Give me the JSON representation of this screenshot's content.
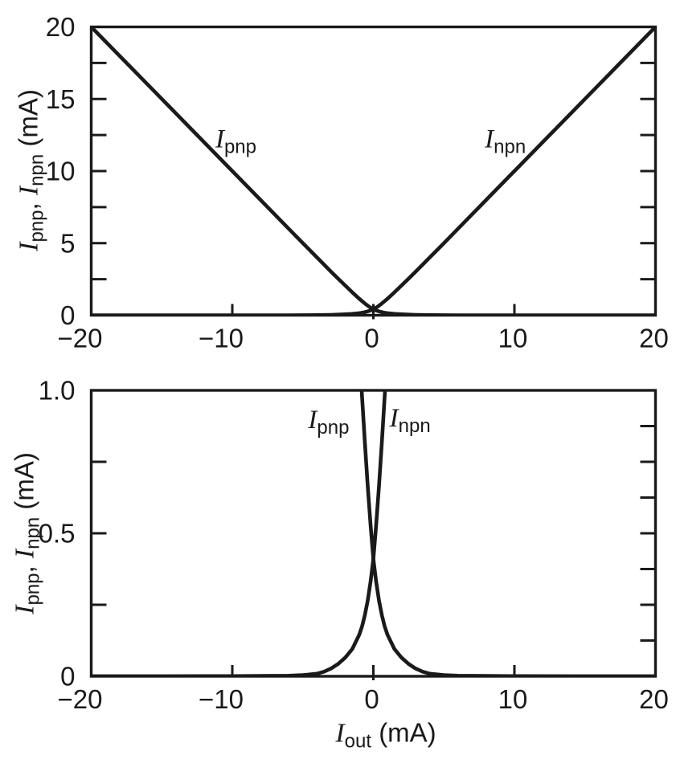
{
  "figure": {
    "background": "#ffffff",
    "ink": "#1a1a1a",
    "y_axis_label": {
      "i1": "I",
      "s1": "pnp",
      "sep": ", ",
      "i2": "I",
      "s2": "npn",
      "unit": " (mA)"
    },
    "x_axis_label": {
      "i": "I",
      "s": "out",
      "unit": " (mA)"
    }
  },
  "chart_data": {
    "type": "line",
    "title": "",
    "xlabel": "Iout (mA)",
    "ylabel": "Ipnp, Inpn (mA)",
    "grid": false,
    "legend": "inline curve annotations",
    "x": [
      -20,
      -15,
      -10,
      -8,
      -6,
      -5,
      -4,
      -3.5,
      -3,
      -2.5,
      -2,
      -1.5,
      -1,
      -0.8,
      -0.6,
      -0.4,
      -0.2,
      0,
      0.2,
      0.4,
      0.6,
      0.8,
      1,
      1.5,
      2,
      2.5,
      3,
      3.5,
      4,
      5,
      6,
      8,
      10,
      15,
      20
    ],
    "series": [
      {
        "name": "Ipnp",
        "label_main": "I",
        "label_sub": "pnp",
        "values": [
          20.0002,
          15.0003,
          10.0005,
          8.001,
          6.002,
          5.004,
          4.009,
          3.516,
          3.027,
          2.543,
          2.065,
          1.595,
          1.145,
          0.975,
          0.815,
          0.665,
          0.53,
          0.41,
          0.33,
          0.265,
          0.215,
          0.175,
          0.145,
          0.095,
          0.065,
          0.043,
          0.027,
          0.016,
          0.009,
          0.004,
          0.002,
          0.001,
          0.0005,
          0.0003,
          0.0002
        ]
      },
      {
        "name": "Inpn",
        "label_main": "I",
        "label_sub": "npn",
        "values": [
          0.0002,
          0.0003,
          0.0005,
          0.001,
          0.002,
          0.004,
          0.009,
          0.016,
          0.027,
          0.043,
          0.065,
          0.095,
          0.145,
          0.175,
          0.215,
          0.265,
          0.33,
          0.41,
          0.53,
          0.665,
          0.815,
          0.975,
          1.145,
          1.595,
          2.065,
          2.543,
          3.027,
          3.516,
          4.009,
          5.004,
          6.002,
          8.001,
          10.0005,
          15.0003,
          20.0002
        ]
      }
    ],
    "quiescent_crossing_mA": 0.41,
    "panels": [
      {
        "id": "top",
        "xlim": [
          -20,
          20
        ],
        "ylim": [
          0,
          20
        ],
        "xticks": [
          -20,
          -10,
          0,
          10,
          20
        ],
        "xtick_labels": [
          "−20",
          "−10",
          "0",
          "10",
          "20"
        ],
        "ytick_values": [
          0,
          5,
          10,
          15,
          20
        ],
        "ytick_labels": [
          "0",
          "5",
          "10",
          "15",
          "20"
        ],
        "ytick_minor_step": 2.5,
        "right_tick_step": 2.5,
        "annotations": [
          {
            "series": "Ipnp",
            "main": "I",
            "sub": "pnp",
            "x": -11.2,
            "y": 11.65
          },
          {
            "series": "Inpn",
            "main": "I",
            "sub": "npn",
            "x": 7.9,
            "y": 11.65
          }
        ]
      },
      {
        "id": "bottom",
        "xlim": [
          -20,
          20
        ],
        "ylim": [
          0,
          1.0
        ],
        "xticks": [
          -20,
          -10,
          0,
          10,
          20
        ],
        "xtick_labels": [
          "−20",
          "−10",
          "0",
          "10",
          "20"
        ],
        "ytick_values": [
          0,
          0.5,
          1.0
        ],
        "ytick_labels": [
          "0",
          "0.5",
          "1.0"
        ],
        "ytick_minor_step": 0.25,
        "right_tick_step": 0.125,
        "annotations": [
          {
            "series": "Ipnp",
            "main": "I",
            "sub": "pnp",
            "x": -4.62,
            "y": 0.868
          },
          {
            "series": "Inpn",
            "main": "I",
            "sub": "npn",
            "x": 1.15,
            "y": 0.873
          }
        ]
      }
    ]
  }
}
